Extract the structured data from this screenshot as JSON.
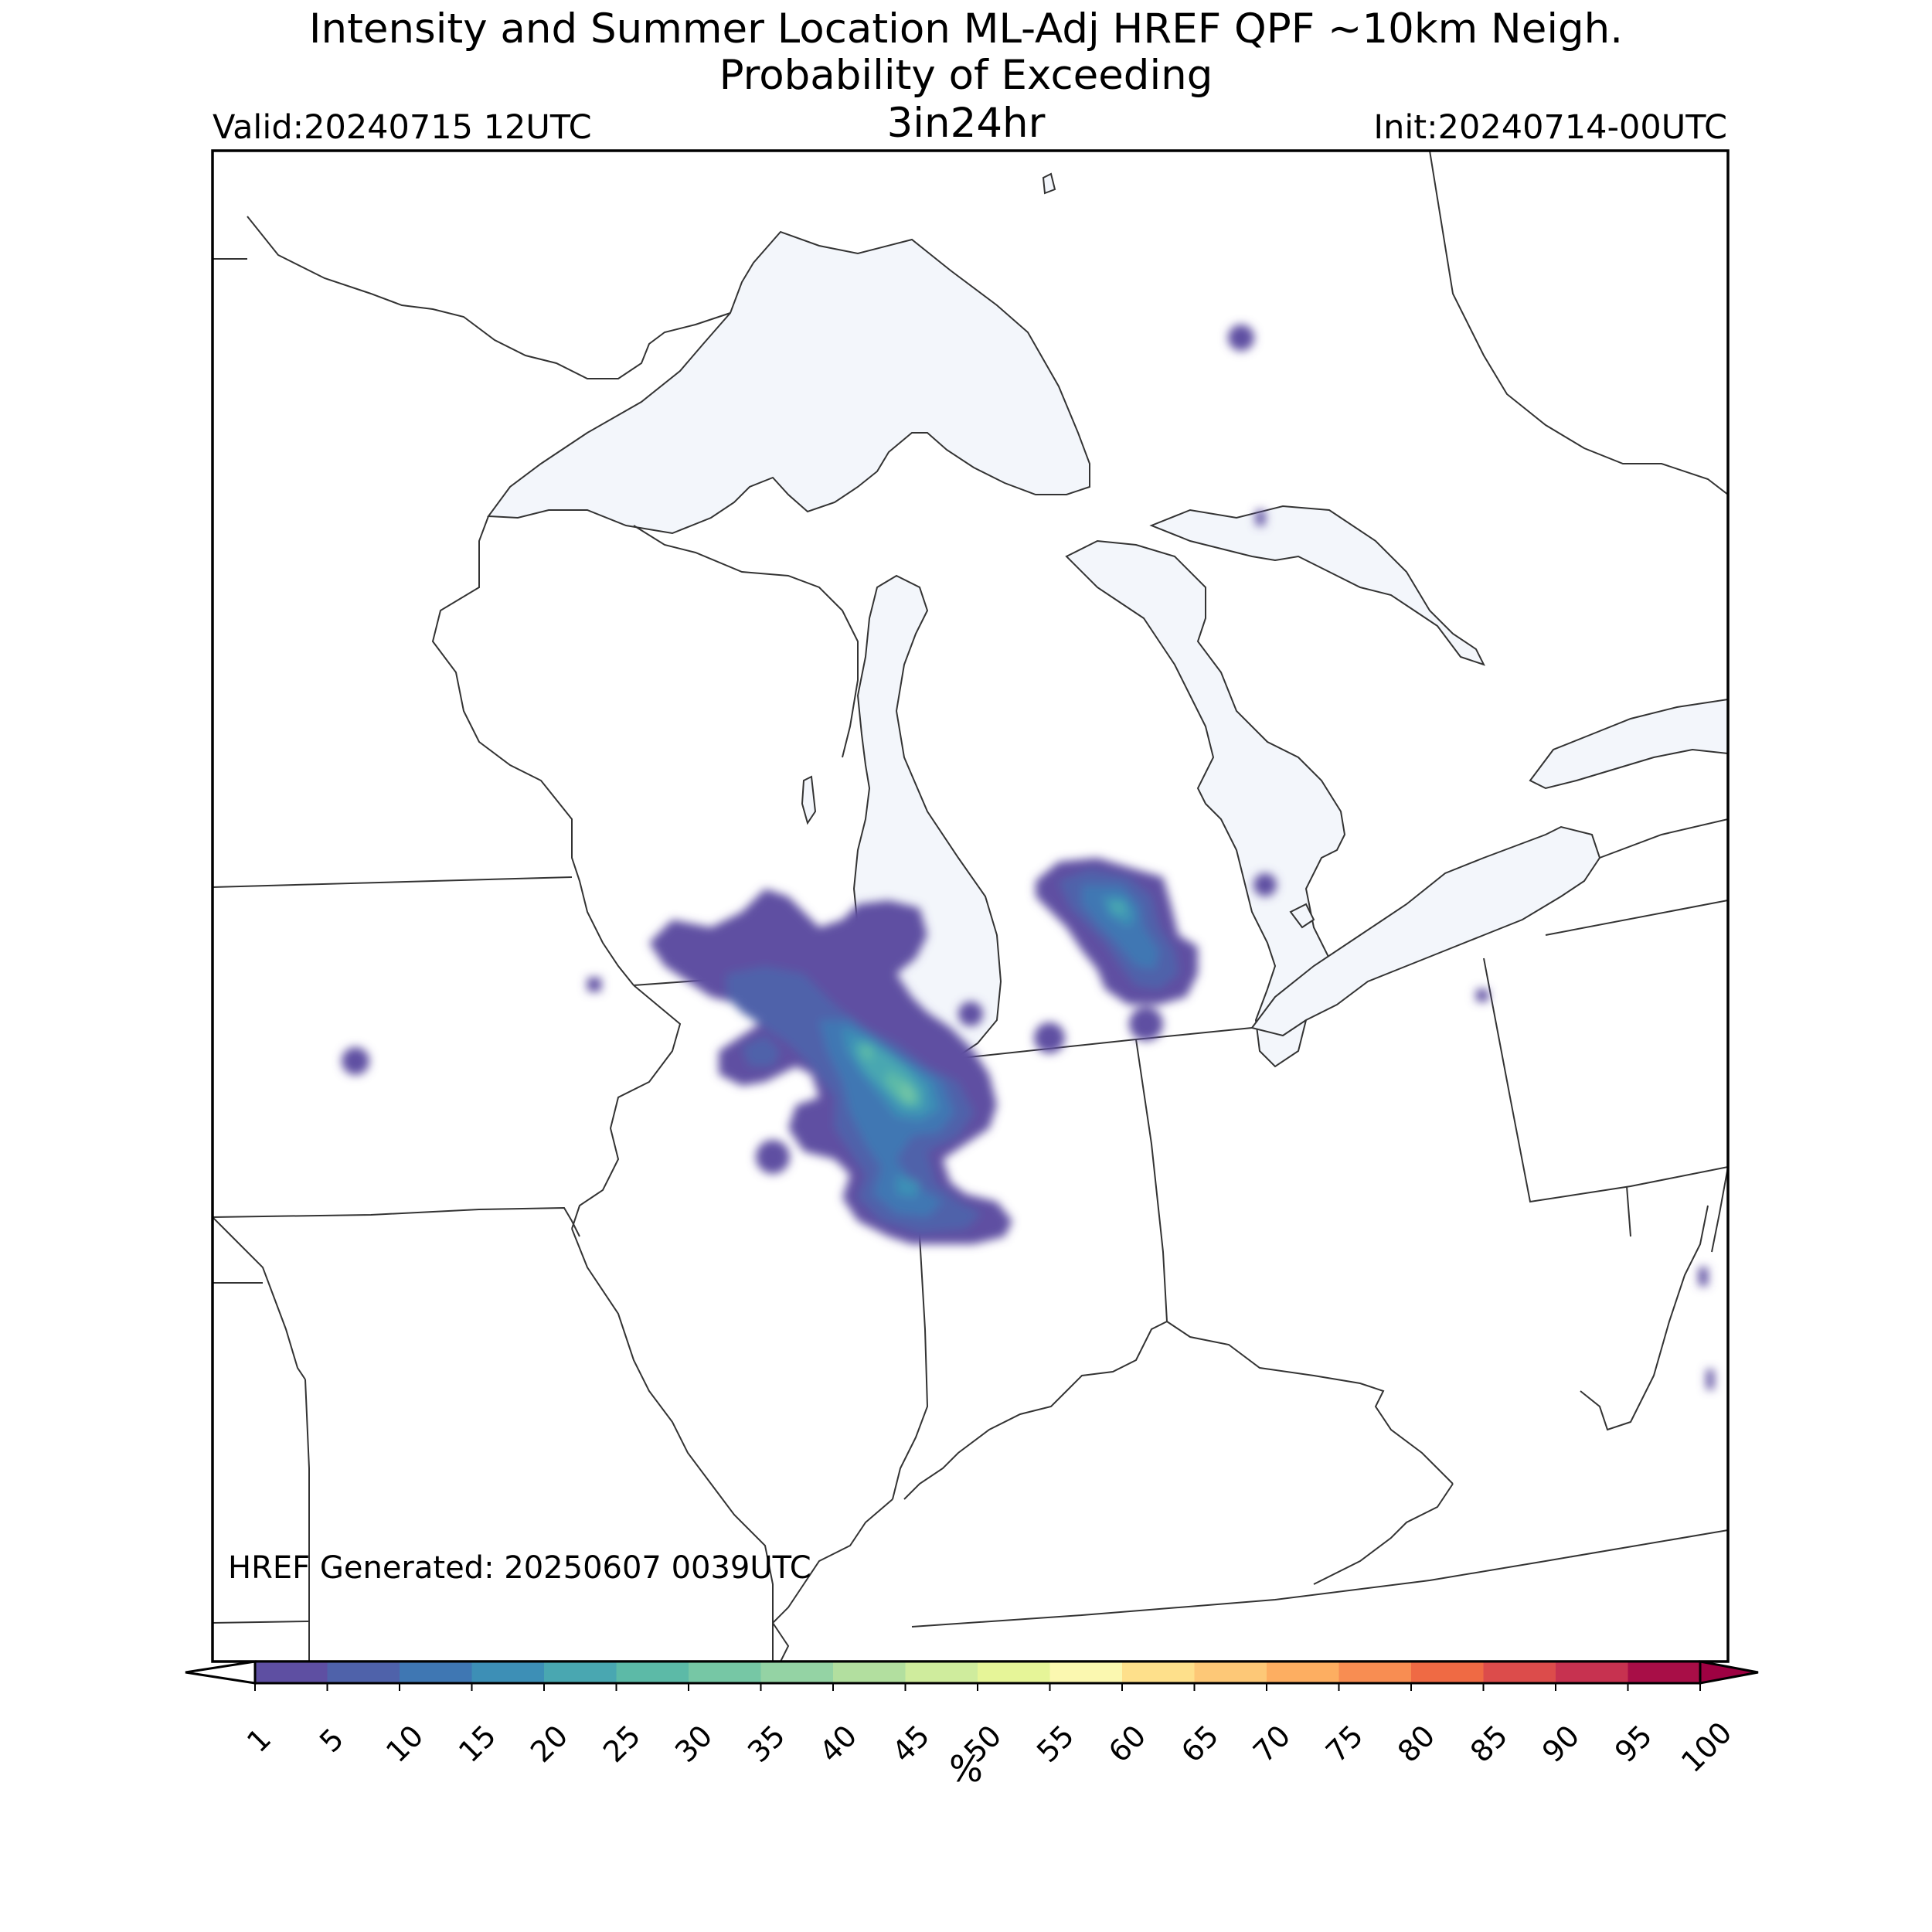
{
  "title_line1": "Intensity and Summer Location ML-Adj HREF QPF ~10km Neigh.",
  "title_line2": "Probability of Exceeding",
  "threshold": "3in24hr",
  "valid": "Valid:20240715 12UTC",
  "init": "Init:20240714-00UTC",
  "generated": "HREF Generated: 20250607 0039UTC",
  "colorbar": {
    "unit": "%",
    "ticks": [
      "1",
      "5",
      "10",
      "15",
      "20",
      "25",
      "30",
      "35",
      "40",
      "45",
      "50",
      "55",
      "60",
      "65",
      "70",
      "75",
      "80",
      "85",
      "90",
      "95",
      "100"
    ],
    "colors": [
      "#5e4fa2",
      "#4f62aa",
      "#3f77b3",
      "#3d8fb6",
      "#49a7b1",
      "#5cbaa7",
      "#76c7a5",
      "#94d3a4",
      "#b2df9f",
      "#cfec9d",
      "#e6f598",
      "#fbf8b0",
      "#fee08b",
      "#fdc877",
      "#fdae61",
      "#f88d52",
      "#ef6a44",
      "#dc4c4b",
      "#c73250",
      "#a80e47"
    ],
    "over_color": "#9e0142",
    "under_color": "#ffffff"
  },
  "map": {
    "land_color": "#ffffff",
    "water_color": "#f3f6fb",
    "border_color": "#333333"
  }
}
